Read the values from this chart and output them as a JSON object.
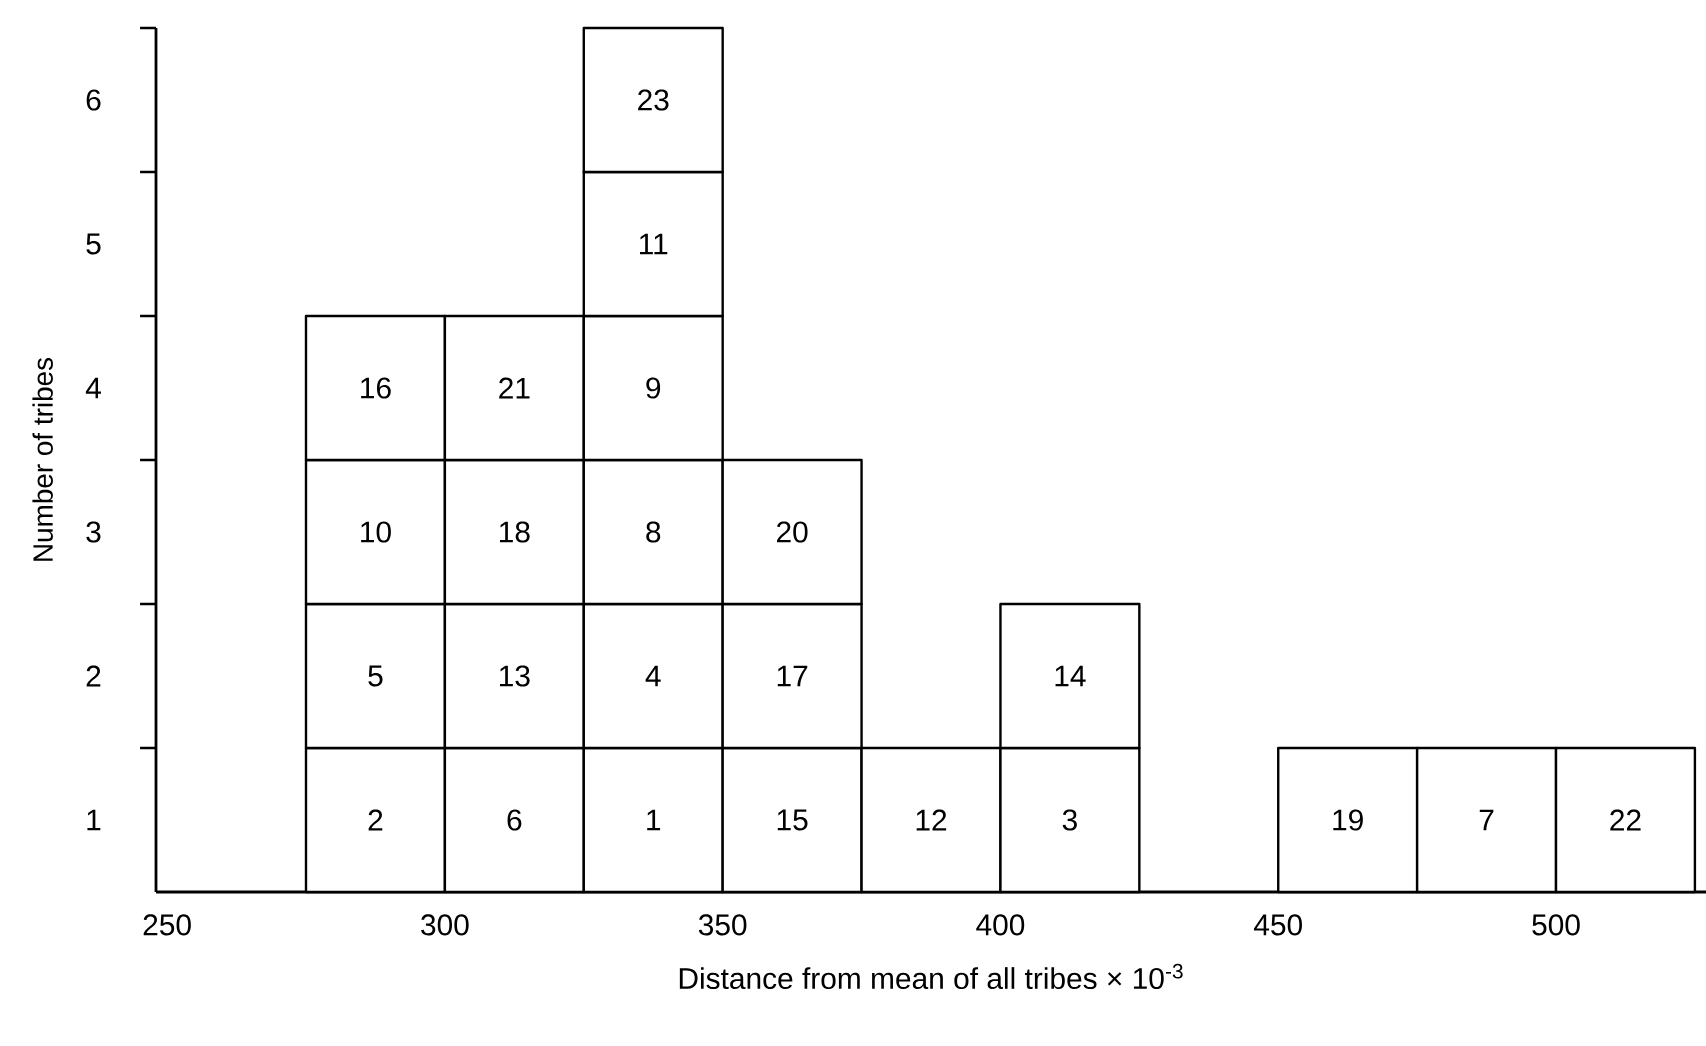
{
  "chart_data": {
    "type": "bar",
    "xlabel": "Distance from mean of all tribes × 10$^{-3}$",
    "ylabel": "Number of tribes",
    "x": [
      287.5,
      312.5,
      337.5,
      362.5,
      387.5,
      412.5,
      437.5,
      462.5,
      487.5,
      512.5
    ],
    "stacked": true,
    "series": [
      {
        "color": "#ffffff",
        "values": [
          1,
          1,
          1,
          1,
          1,
          1,
          null,
          1,
          1,
          1
        ]
      },
      {
        "color": "#ffffff",
        "values": [
          1,
          1,
          1,
          1,
          null,
          1,
          null,
          null,
          null,
          null
        ]
      },
      {
        "color": "#ffffff",
        "values": [
          1,
          1,
          1,
          1,
          null,
          null,
          null,
          null,
          null,
          null
        ]
      },
      {
        "color": "#ffffff",
        "values": [
          1,
          1,
          1,
          null,
          null,
          null,
          null,
          null,
          null,
          null
        ]
      },
      {
        "color": "#ffffff",
        "values": [
          null,
          null,
          1,
          null,
          null,
          null,
          null,
          null,
          null,
          null
        ]
      },
      {
        "color": "#ffffff",
        "values": [
          null,
          null,
          1,
          null,
          null,
          null,
          null,
          null,
          null,
          null
        ]
      }
    ],
    "annotations": [
      "2",
      "6",
      "1",
      "15",
      "12",
      "3",
      "19",
      "7",
      "22",
      "5",
      "13",
      "4",
      "17",
      "14",
      "10",
      "18",
      "8",
      "20",
      "16",
      "21",
      "9",
      "11",
      "23"
    ],
    "xlim": [
      248,
      527
    ],
    "ylim": [
      0,
      6
    ],
    "xticks": [
      250,
      300,
      350,
      400,
      450,
      500
    ],
    "yticks": [
      {
        "value": 0.5,
        "label": "1"
      },
      {
        "value": 1,
        "label": null
      },
      {
        "value": 1.5,
        "label": "2"
      },
      {
        "value": 2,
        "label": null
      },
      {
        "value": 2.5,
        "label": "3"
      },
      {
        "value": 3,
        "label": null
      },
      {
        "value": 3.5,
        "label": "4"
      },
      {
        "value": 4,
        "label": null
      },
      {
        "value": 4.5,
        "label": "5"
      },
      {
        "value": 5,
        "label": null
      },
      {
        "value": 5.5,
        "label": "6"
      },
      {
        "value": 6,
        "label": null
      }
    ]
  }
}
